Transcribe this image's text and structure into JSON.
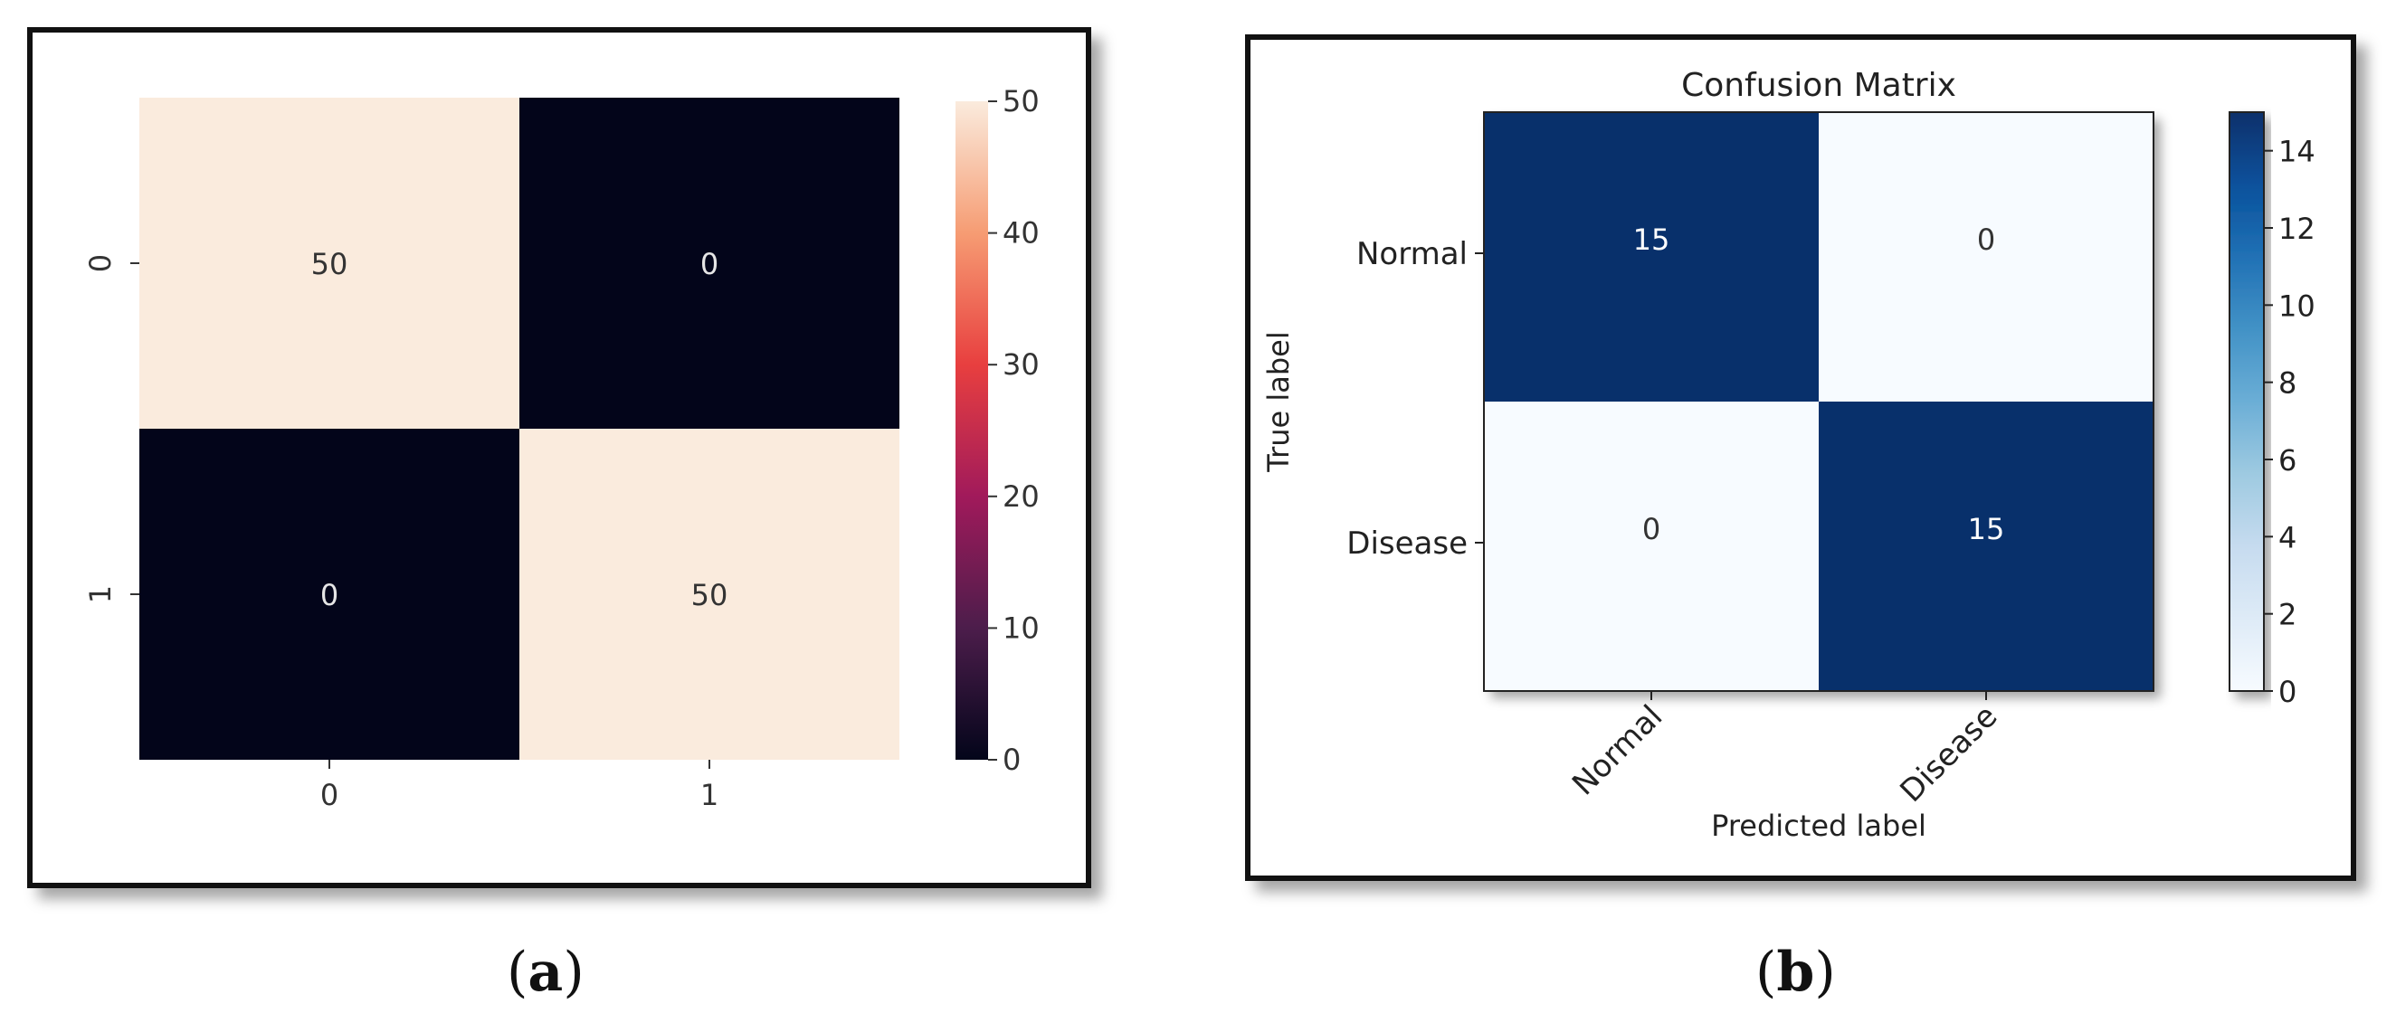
{
  "panel_labels": {
    "a": {
      "open": "(",
      "letter": "a",
      "close": ")"
    },
    "b": {
      "open": "(",
      "letter": "b",
      "close": ")"
    }
  },
  "chart_data": [
    {
      "type": "heatmap",
      "panel": "a",
      "title": "",
      "xlabel": "",
      "ylabel": "",
      "x_categories": [
        "0",
        "1"
      ],
      "y_categories": [
        "0",
        "1"
      ],
      "values": [
        [
          50,
          0
        ],
        [
          0,
          50
        ]
      ],
      "annotations": [
        [
          "50",
          "0"
        ],
        [
          "0",
          "50"
        ]
      ],
      "colormap": "rocket",
      "colormap_stops": [
        "#03051a",
        "#4c1d4b",
        "#a11a5b",
        "#e83f3f",
        "#f69c73",
        "#faebdd"
      ],
      "cell_text_colors": {
        "light": "#333333",
        "dark": "#e6e6e6"
      },
      "colorbar": {
        "min": 0,
        "max": 50,
        "ticks": [
          "0",
          "10",
          "20",
          "30",
          "40",
          "50"
        ]
      }
    },
    {
      "type": "heatmap",
      "panel": "b",
      "title": "Confusion Matrix",
      "xlabel": "Predicted label",
      "ylabel": "True label",
      "x_categories": [
        "Normal",
        "Disease"
      ],
      "y_categories": [
        "Normal",
        "Disease"
      ],
      "values": [
        [
          15,
          0
        ],
        [
          0,
          15
        ]
      ],
      "annotations": [
        [
          "15",
          "0"
        ],
        [
          "0",
          "15"
        ]
      ],
      "colormap": "Blues",
      "colormap_stops": [
        "#f7fbff",
        "#deebf7",
        "#c6dbef",
        "#9ecae1",
        "#6baed6",
        "#4292c6",
        "#2171b5",
        "#08519c",
        "#08306b"
      ],
      "cell_text_colors": {
        "light": "#333333",
        "dark": "#ffffff"
      },
      "colorbar": {
        "min": 0,
        "max": 15,
        "ticks": [
          "0",
          "2",
          "4",
          "6",
          "8",
          "10",
          "12",
          "14"
        ]
      }
    }
  ]
}
